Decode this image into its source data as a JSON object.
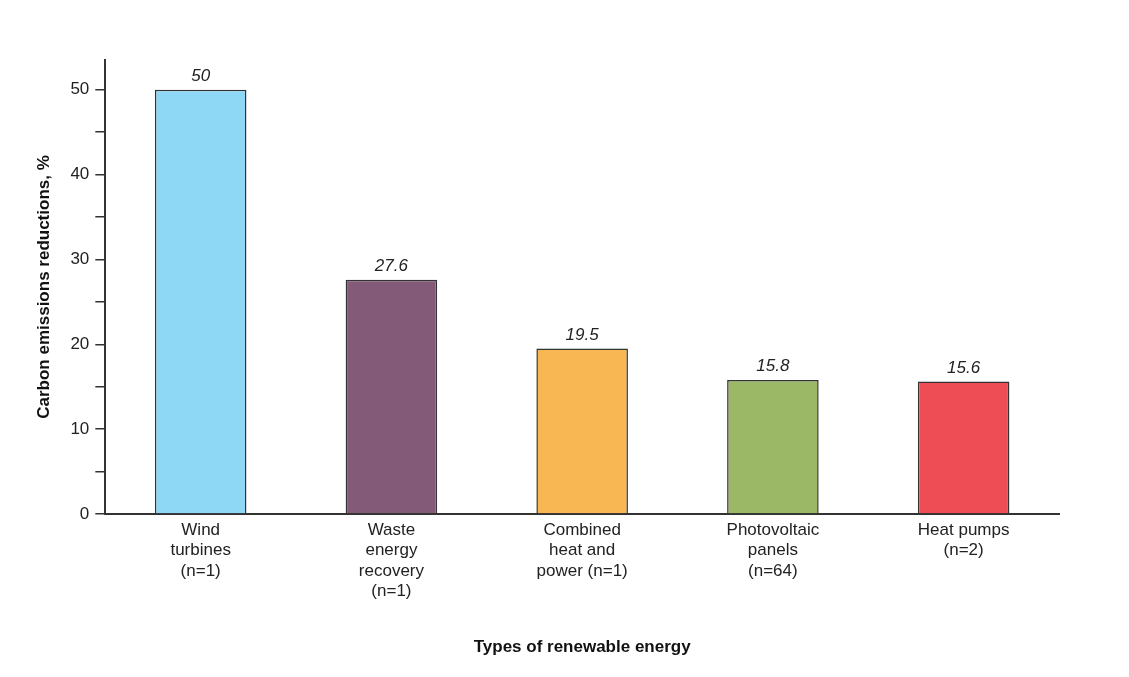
{
  "chart_data": {
    "type": "bar",
    "xlabel": "Types of renewable energy",
    "ylabel": "Carbon emissions reductions, %",
    "categories": [
      "Wind turbines (n=1)",
      "Waste energy recovery (n=1)",
      "Combined heat and power (n=1)",
      "Photovoltaic panels (n=64)",
      "Heat pumps (n=2)"
    ],
    "values": [
      50,
      27.6,
      19.5,
      15.8,
      15.6
    ],
    "colors": [
      "#8fd8f5",
      "#835a78",
      "#f9b754",
      "#9bb866",
      "#ee4d55"
    ],
    "value_labels": [
      "50",
      "27.6",
      "19.5",
      "15.8",
      "15.6"
    ],
    "ylim": [
      0,
      53.5
    ],
    "yticks": [
      0,
      {
        "value": 5,
        "label": null
      },
      10,
      {
        "value": 15,
        "label": null
      },
      20,
      {
        "value": 25,
        "label": null
      },
      30,
      {
        "value": 35,
        "label": null
      },
      40,
      {
        "value": 45,
        "label": null
      },
      50
    ],
    "grid": false,
    "legend": false
  }
}
